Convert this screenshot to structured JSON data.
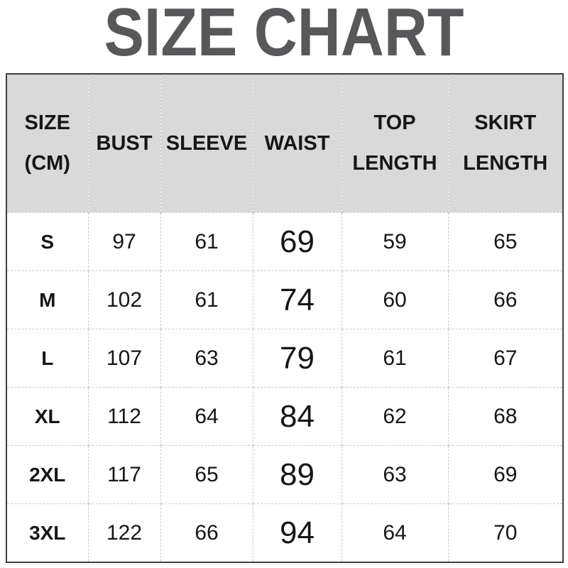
{
  "title": "SIZE CHART",
  "table": {
    "columns": [
      {
        "id": "size",
        "lines": [
          "SIZE",
          "(CM)"
        ]
      },
      {
        "id": "bust",
        "lines": [
          "BUST"
        ]
      },
      {
        "id": "sleeve",
        "lines": [
          "SLEEVE"
        ]
      },
      {
        "id": "waist",
        "lines": [
          "WAIST"
        ]
      },
      {
        "id": "top-length",
        "lines": [
          "TOP",
          "LENGTH"
        ]
      },
      {
        "id": "skirt-length",
        "lines": [
          "SKIRT",
          "LENGTH"
        ]
      }
    ],
    "rows": [
      {
        "cells": [
          "S",
          "97",
          "61",
          "69",
          "59",
          "65"
        ]
      },
      {
        "cells": [
          "M",
          "102",
          "61",
          "74",
          "60",
          "66"
        ]
      },
      {
        "cells": [
          "L",
          "107",
          "63",
          "79",
          "61",
          "67"
        ]
      },
      {
        "cells": [
          "XL",
          "112",
          "64",
          "84",
          "62",
          "68"
        ]
      },
      {
        "cells": [
          "2XL",
          "117",
          "65",
          "89",
          "63",
          "69"
        ]
      },
      {
        "cells": [
          "3XL",
          "122",
          "66",
          "94",
          "64",
          "70"
        ]
      }
    ]
  },
  "colors": {
    "title_text": "#58585a",
    "header_background": "#d9d9d9",
    "outer_border": "#3f3f3f",
    "grid_lines": "#c9c9c9",
    "body_text": "#161616"
  }
}
